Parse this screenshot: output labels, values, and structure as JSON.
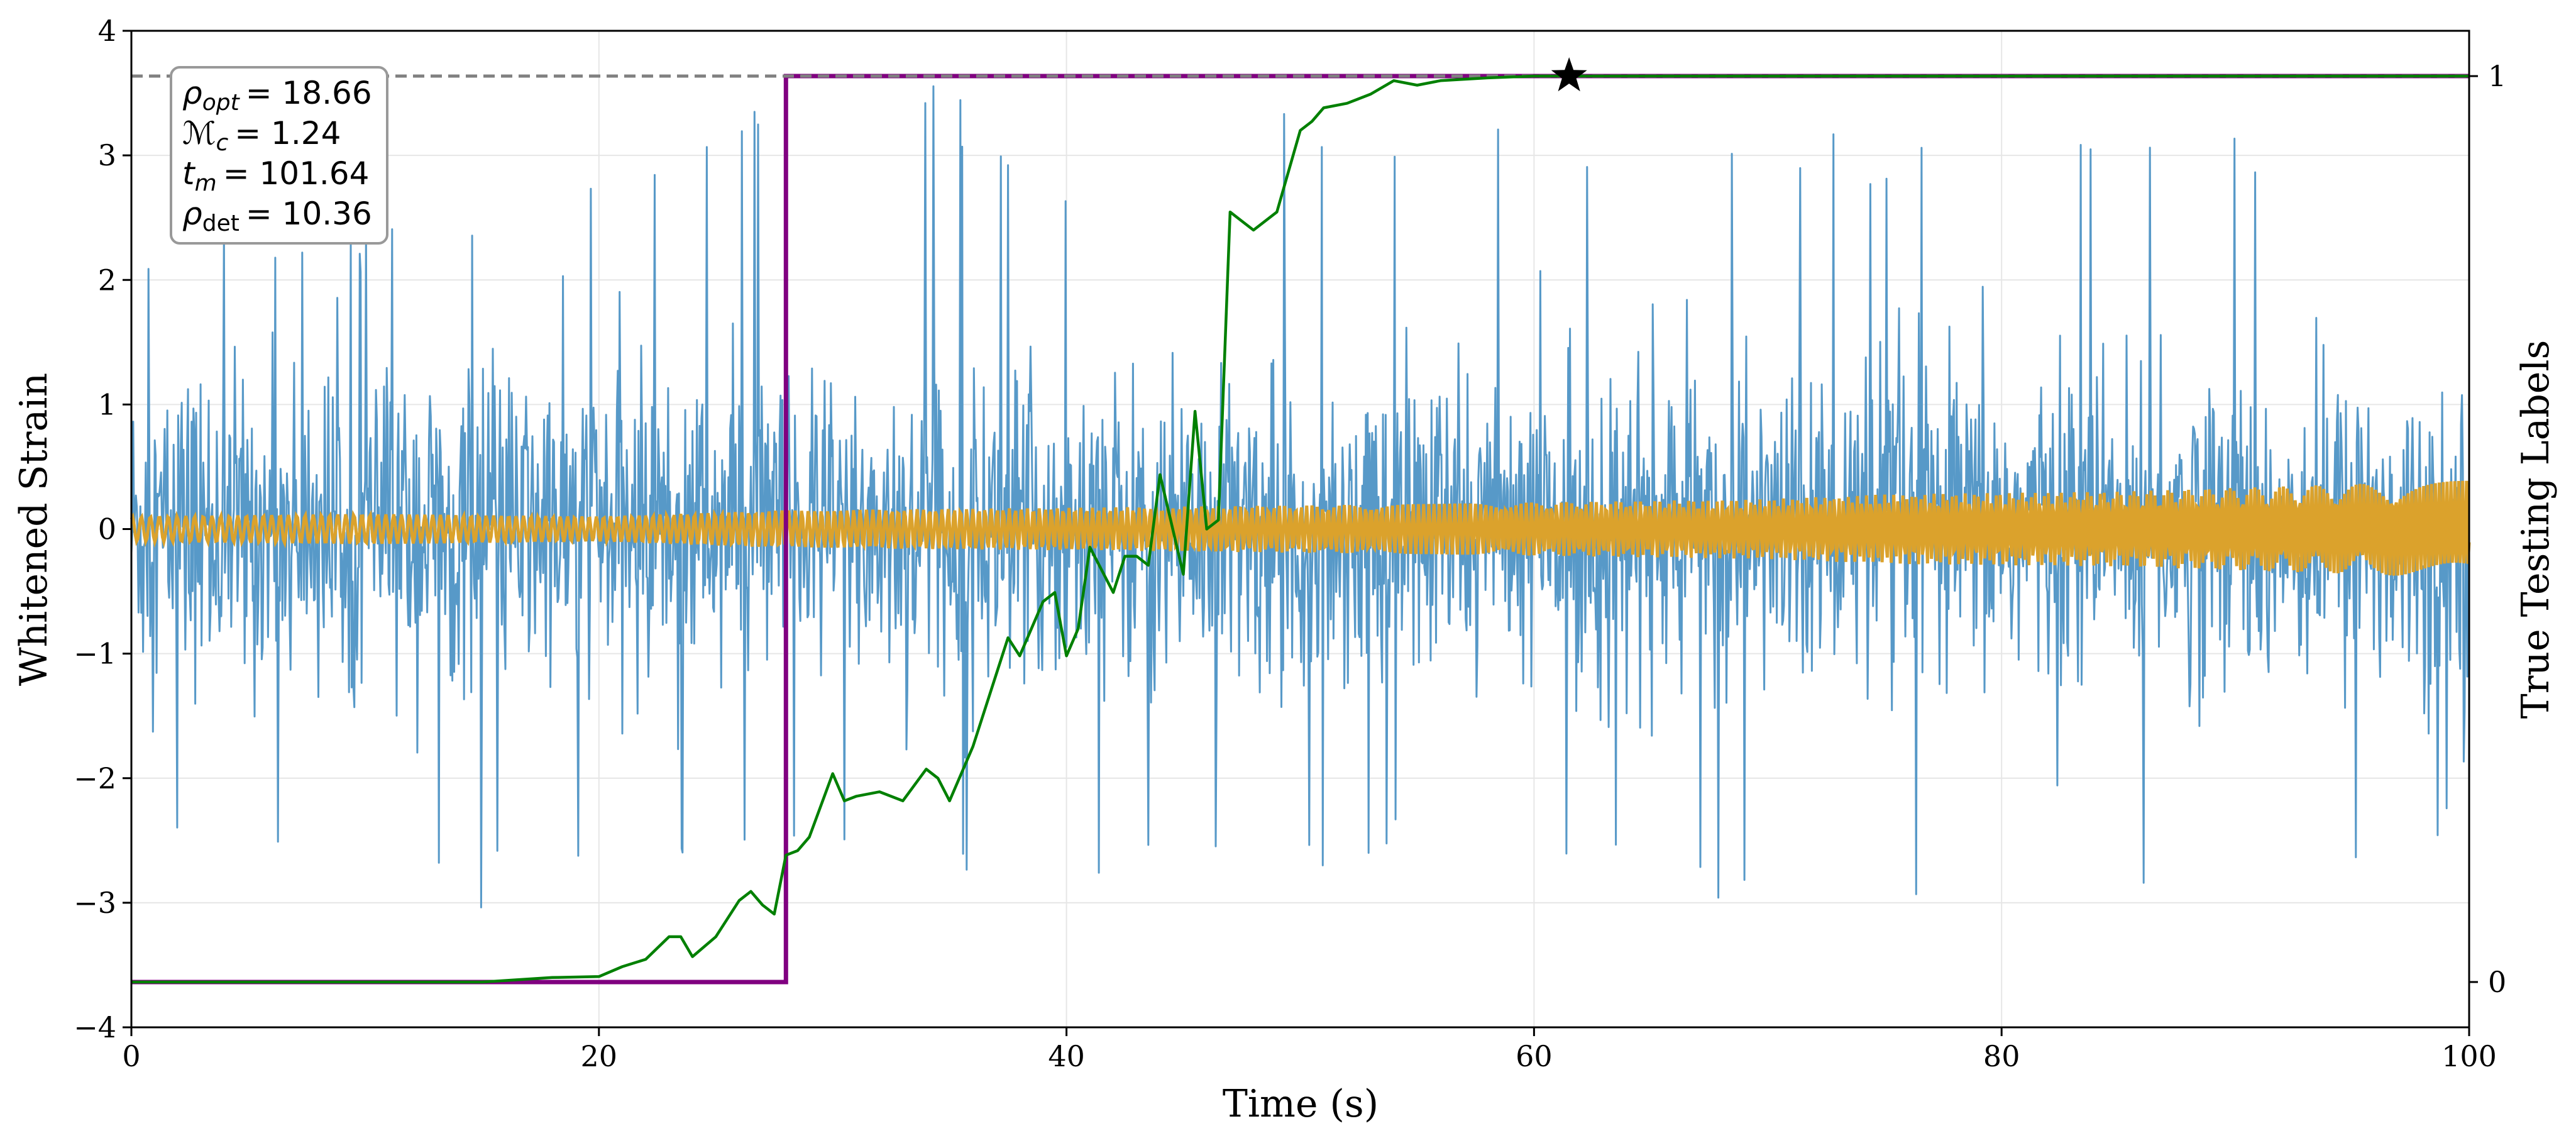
{
  "chart_data": {
    "type": "line",
    "title": "",
    "xlabel": "Time (s)",
    "ylabel": "Whitened Strain",
    "y2label": "True Testing Labels",
    "xlim": [
      0,
      100
    ],
    "ylim": [
      -4,
      4
    ],
    "y2lim": [
      -0.05,
      1.05
    ],
    "x_ticks": [
      0,
      20,
      40,
      60,
      80,
      100
    ],
    "y_ticks": [
      -4,
      -3,
      -2,
      -1,
      0,
      1,
      2,
      3,
      4
    ],
    "y_tick_labels": [
      "−4",
      "−3",
      "−2",
      "−1",
      "0",
      "1",
      "2",
      "3",
      "4"
    ],
    "y2_ticks": [
      0,
      1
    ],
    "grid": true,
    "colors": {
      "strain": "#5799c8",
      "template": "#dba22c",
      "label": "#800080",
      "prediction": "#008000",
      "threshold": "#808080",
      "marker": "#000000"
    },
    "series": [
      {
        "name": "",
        "kind": "noisy-strain",
        "axis": "left",
        "envelope": {
          "time": [
            0,
            10,
            20,
            30,
            40,
            50,
            60,
            70,
            80,
            90,
            100
          ],
          "upper_peak": [
            2.4,
            2.4,
            2.8,
            4.0,
            3.0,
            3.4,
            3.2,
            3.2,
            3.3,
            3.4,
            3.0
          ],
          "lower_peak": [
            -2.5,
            -3.2,
            -2.9,
            -2.8,
            -2.9,
            -2.9,
            -2.8,
            -3.2,
            -3.0,
            -3.0,
            -2.5
          ]
        }
      },
      {
        "name": "",
        "kind": "template-chirp",
        "axis": "left",
        "amplitude": {
          "time": [
            0,
            10,
            20,
            28,
            40,
            55,
            70,
            75,
            85,
            95,
            100
          ],
          "value": [
            0.1,
            0.12,
            0.1,
            0.15,
            0.17,
            0.2,
            0.24,
            0.28,
            0.3,
            0.36,
            0.4
          ]
        }
      },
      {
        "name": "",
        "kind": "true-label",
        "axis": "right",
        "x": [
          0,
          28,
          28,
          100
        ],
        "y": [
          0,
          0,
          1,
          1
        ]
      },
      {
        "name": "",
        "kind": "prediction",
        "axis": "right",
        "x": [
          0,
          15,
          18,
          20,
          21,
          22,
          23,
          23.5,
          24,
          25,
          26,
          26.5,
          27,
          27.5,
          28,
          28.5,
          29,
          30,
          30.5,
          31,
          32,
          33,
          34,
          34.5,
          35,
          36,
          37,
          37.5,
          38,
          39,
          39.5,
          40,
          40.5,
          41,
          42,
          42.5,
          43,
          43.5,
          44,
          45,
          45.5,
          46,
          46.5,
          47,
          47.5,
          48,
          49,
          50,
          50.5,
          51,
          52,
          53,
          54,
          55,
          56,
          58,
          60,
          61.5,
          70,
          100
        ],
        "y": [
          0,
          0,
          0.005,
          0.006,
          0.017,
          0.025,
          0.05,
          0.05,
          0.028,
          0.05,
          0.09,
          0.1,
          0.085,
          0.075,
          0.14,
          0.145,
          0.16,
          0.23,
          0.2,
          0.205,
          0.21,
          0.2,
          0.235,
          0.225,
          0.2,
          0.26,
          0.34,
          0.38,
          0.36,
          0.42,
          0.43,
          0.36,
          0.39,
          0.48,
          0.43,
          0.47,
          0.47,
          0.46,
          0.56,
          0.45,
          0.63,
          0.5,
          0.51,
          0.85,
          0.84,
          0.83,
          0.85,
          0.94,
          0.95,
          0.965,
          0.97,
          0.98,
          0.995,
          0.99,
          0.995,
          0.998,
          1,
          1,
          1,
          1
        ],
        "final_marker": {
          "x": 61.5,
          "y": 1
        }
      },
      {
        "name": "",
        "kind": "threshold",
        "axis": "right",
        "y": 1
      }
    ],
    "annotation": {
      "params": [
        {
          "symbol": "ρ",
          "sub": "opt",
          "italic": true,
          "value": "= 18.66"
        },
        {
          "symbol": "ℳ",
          "sub": "c",
          "italic": true,
          "value": "= 1.24"
        },
        {
          "symbol": "t",
          "sub": "m",
          "italic": true,
          "value": "= 101.64"
        },
        {
          "symbol": "ρ",
          "sub": "det",
          "italic": false,
          "value": "= 10.36"
        }
      ]
    }
  }
}
